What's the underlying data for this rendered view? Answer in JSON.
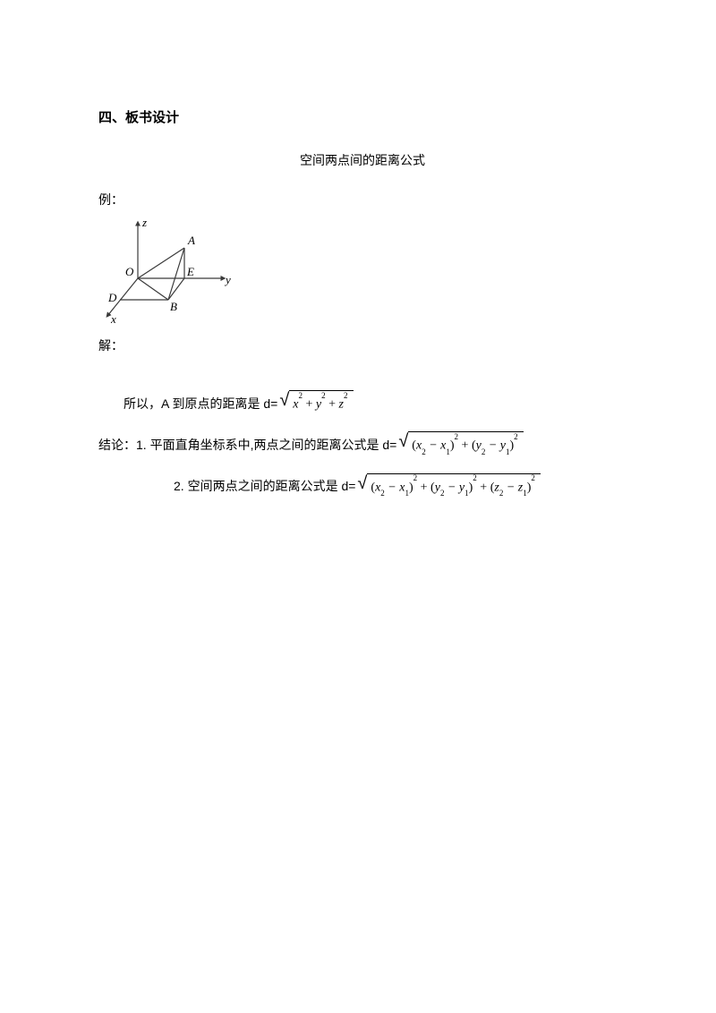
{
  "colors": {
    "background": "#ffffff",
    "text": "#000000",
    "diagram_stroke": "#3a3a3a"
  },
  "heading": "四、板书设计",
  "centered_title": "空间两点间的距离公式",
  "example_label": "例：",
  "solution_label": "解：",
  "diagram": {
    "width": 150,
    "height": 120,
    "stroke": "#3a3a3a",
    "label_font": "italic 14px 'Times New Roman', serif",
    "axes": {
      "z_label": "z",
      "y_label": "y",
      "x_label": "x"
    },
    "points": {
      "O": "O",
      "A": "A",
      "B": "B",
      "D": "D",
      "E": "E"
    }
  },
  "line1": {
    "prefix": "所以，A 到原点的距离是 d= ",
    "sqrt_content": "x<sup>2</sup> <span class=\"upright\">+</span> y<sup>2</sup> <span class=\"upright\">+</span> z<sup>2</sup>"
  },
  "line2": {
    "prefix": "结论：1. 平面直角坐标系中,两点之间的距离公式是 d= ",
    "sqrt_content": "<span class=\"upright\">(</span>x<sub>2</sub> − x<sub>1</sub><span class=\"upright\">)</span><sup>2</sup> <span class=\"upright\">+</span> <span class=\"upright\">(</span>y<sub>2</sub> − y<sub>1</sub><span class=\"upright\">)</span><sup>2</sup>"
  },
  "line3": {
    "prefix": "2. 空间两点之间的距离公式是 d= ",
    "sqrt_content": "<span class=\"upright\">(</span>x<sub>2</sub> − x<sub>1</sub><span class=\"upright\">)</span><sup>2</sup> <span class=\"upright\">+</span> <span class=\"upright\">(</span>y<sub>2</sub> − y<sub>1</sub><span class=\"upright\">)</span><sup>2</sup> <span class=\"upright\">+</span> <span class=\"upright\">(</span>z<sub>2</sub> − z<sub>1</sub><span class=\"upright\">)</span><sup>2</sup>"
  }
}
